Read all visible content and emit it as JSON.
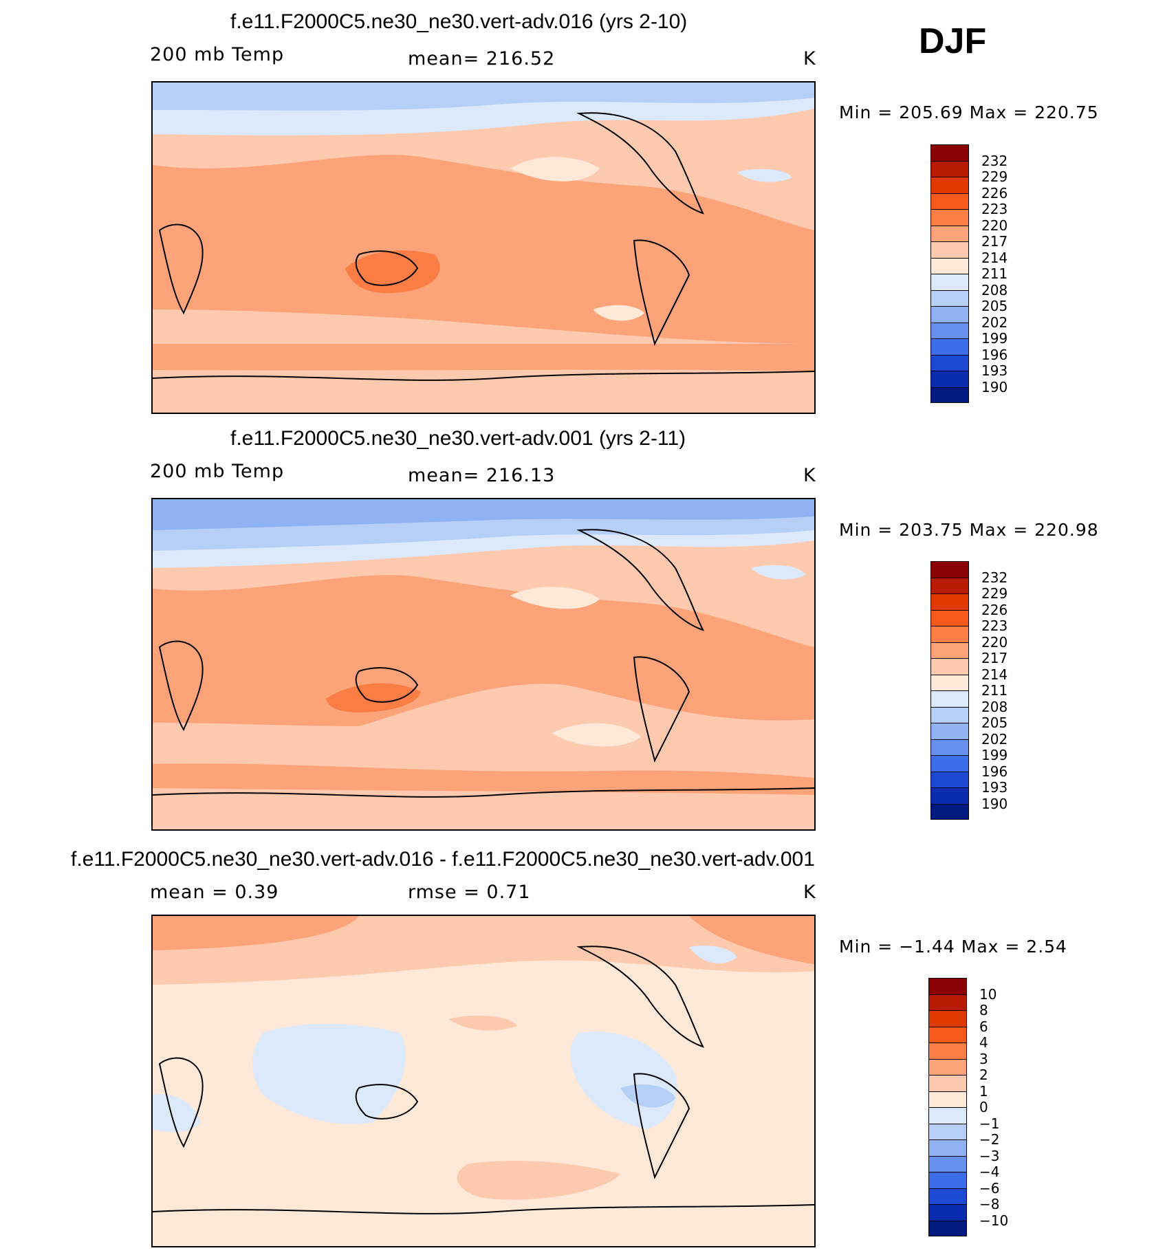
{
  "season": "DJF",
  "panels": [
    {
      "title": "f.e11.F2000C5.ne30_ne30.vert-adv.016 (yrs 2-10)",
      "left_label": "200 mb Temp",
      "center_label": "mean=  216.52",
      "units": "K",
      "minmax": "Min  =  205.69  Max  =  220.75",
      "colorbar": {
        "labels": [
          "232",
          "229",
          "226",
          "223",
          "220",
          "217",
          "214",
          "211",
          "208",
          "205",
          "202",
          "199",
          "196",
          "193",
          "190"
        ],
        "colors": [
          "#8b0000",
          "#b81c00",
          "#e03a00",
          "#f55a1a",
          "#fa7d45",
          "#fca37a",
          "#fdc9af",
          "#fee9d9",
          "#dbe9fa",
          "#b5cff7",
          "#8fb2f3",
          "#6691ef",
          "#3d6de9",
          "#1d49d4",
          "#0a2cae",
          "#001a80"
        ]
      }
    },
    {
      "title": "f.e11.F2000C5.ne30_ne30.vert-adv.001 (yrs 2-11)",
      "left_label": "200 mb Temp",
      "center_label": "mean=  216.13",
      "units": "K",
      "minmax": "Min  =  203.75  Max  =  220.98",
      "colorbar": {
        "labels": [
          "232",
          "229",
          "226",
          "223",
          "220",
          "217",
          "214",
          "211",
          "208",
          "205",
          "202",
          "199",
          "196",
          "193",
          "190"
        ],
        "colors": [
          "#8b0000",
          "#b81c00",
          "#e03a00",
          "#f55a1a",
          "#fa7d45",
          "#fca37a",
          "#fdc9af",
          "#fee9d9",
          "#dbe9fa",
          "#b5cff7",
          "#8fb2f3",
          "#6691ef",
          "#3d6de9",
          "#1d49d4",
          "#0a2cae",
          "#001a80"
        ]
      }
    },
    {
      "title": "f.e11.F2000C5.ne30_ne30.vert-adv.016 - f.e11.F2000C5.ne30_ne30.vert-adv.001",
      "left_label": "mean  =      0.39",
      "center_label": "rmse  =      0.71",
      "units": "K",
      "minmax": "Min  =    −1.44  Max  =      2.54",
      "colorbar": {
        "labels": [
          "10",
          "8",
          "6",
          "4",
          "3",
          "2",
          "1",
          "0",
          "−1",
          "−2",
          "−3",
          "−4",
          "−6",
          "−8",
          "−10"
        ],
        "colors": [
          "#8b0000",
          "#b81c00",
          "#e03a00",
          "#f55a1a",
          "#fa7d45",
          "#fca37a",
          "#fdc9af",
          "#fee9d9",
          "#dbe9fa",
          "#b5cff7",
          "#8fb2f3",
          "#6691ef",
          "#3d6de9",
          "#1d49d4",
          "#0a2cae",
          "#001a80"
        ]
      }
    }
  ]
}
